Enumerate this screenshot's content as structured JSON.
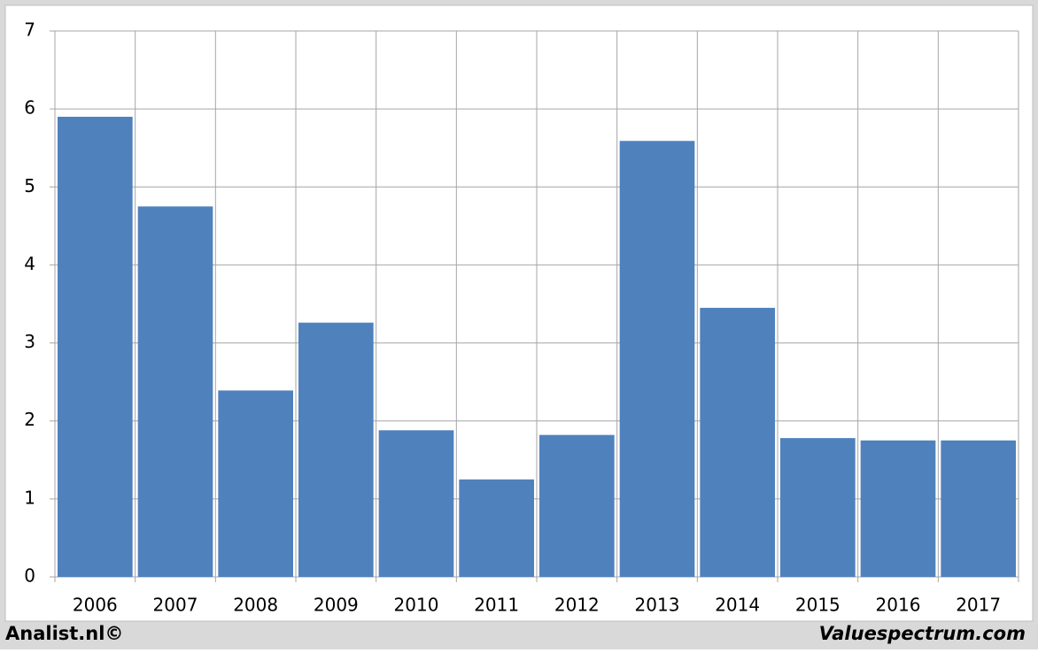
{
  "chart_data": {
    "type": "bar",
    "categories": [
      "2006",
      "2007",
      "2008",
      "2009",
      "2010",
      "2011",
      "2012",
      "2013",
      "2014",
      "2015",
      "2016",
      "2017"
    ],
    "values": [
      5.9,
      4.75,
      2.39,
      3.26,
      1.88,
      1.25,
      1.82,
      5.59,
      3.45,
      1.78,
      1.75,
      1.75
    ],
    "color": "#4f81bd",
    "ylim": [
      0,
      7
    ],
    "yticks": [
      0,
      1,
      2,
      3,
      4,
      5,
      6,
      7
    ],
    "grid": true,
    "credits": [
      "Analist.nl©",
      "Valuespectrum.com"
    ]
  }
}
